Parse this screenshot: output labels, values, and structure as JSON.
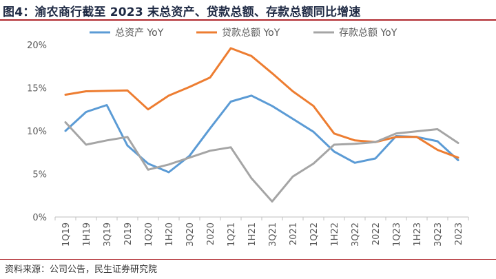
{
  "title": "图4：渝农商行截至 2023 末总资产、贷款总额、存款总额同比增速",
  "source": "资料来源：公司公告，民生证券研究院",
  "chart_data": {
    "type": "line",
    "title": "图4：渝农商行截至 2023 末总资产、贷款总额、存款总额同比增速",
    "xlabel": "",
    "ylabel": "",
    "categories": [
      "1Q19",
      "1H19",
      "3Q19",
      "2019",
      "1Q20",
      "1H20",
      "3Q20",
      "2020",
      "1Q21",
      "1H21",
      "3Q21",
      "2021",
      "1Q22",
      "1H22",
      "3Q22",
      "2022",
      "1Q23",
      "1H23",
      "3Q23",
      "2023"
    ],
    "ylim": [
      0,
      20
    ],
    "yticks": [
      0,
      5,
      10,
      15,
      20
    ],
    "ytick_labels": [
      "0%",
      "5%",
      "10%",
      "15%",
      "20%"
    ],
    "grid": false,
    "legend_position": "top",
    "series": [
      {
        "name": "总资产 YoY",
        "color": "#5b9bd5",
        "values": [
          10.0,
          12.2,
          13.0,
          8.3,
          6.2,
          5.2,
          7.1,
          10.3,
          13.4,
          14.1,
          12.9,
          11.4,
          9.9,
          7.6,
          6.3,
          6.8,
          9.4,
          9.3,
          8.8,
          6.6
        ]
      },
      {
        "name": "贷款总额 YoY",
        "color": "#ed7d31",
        "values": [
          14.2,
          14.6,
          14.65,
          14.7,
          12.5,
          14.1,
          15.1,
          16.2,
          19.6,
          18.7,
          16.7,
          14.6,
          12.9,
          9.7,
          8.9,
          8.7,
          9.3,
          9.3,
          7.8,
          6.9
        ]
      },
      {
        "name": "存款总额 YoY",
        "color": "#a5a5a5",
        "values": [
          11.0,
          8.4,
          8.9,
          9.3,
          5.5,
          6.1,
          6.9,
          7.7,
          8.1,
          4.5,
          1.8,
          4.7,
          6.2,
          8.4,
          8.5,
          8.7,
          9.7,
          9.95,
          10.2,
          8.6
        ]
      }
    ]
  }
}
